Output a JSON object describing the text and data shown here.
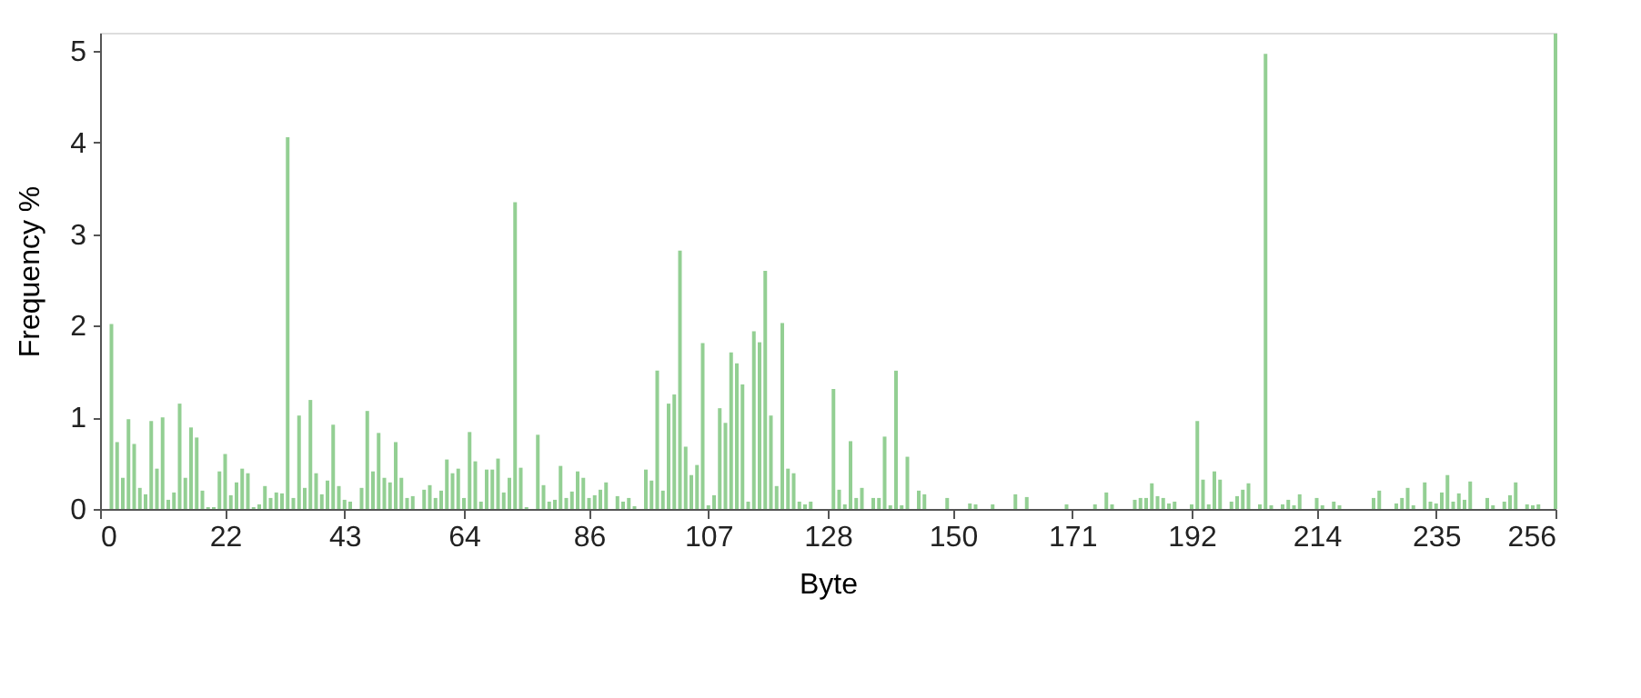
{
  "chart_data": {
    "type": "bar",
    "xlabel": "Byte",
    "ylabel": "Frequency %",
    "x": [
      1,
      2,
      3,
      4,
      5,
      6,
      7,
      8,
      9,
      10,
      11,
      12,
      13,
      14,
      15,
      16,
      17,
      18,
      19,
      20,
      21,
      22,
      23,
      24,
      25,
      26,
      27,
      28,
      29,
      30,
      31,
      32,
      33,
      34,
      35,
      36,
      37,
      38,
      39,
      40,
      41,
      42,
      43,
      44,
      45,
      46,
      47,
      48,
      49,
      50,
      51,
      52,
      53,
      54,
      55,
      56,
      57,
      58,
      59,
      60,
      61,
      62,
      63,
      64,
      65,
      66,
      67,
      68,
      69,
      70,
      71,
      72,
      73,
      74,
      75,
      76,
      77,
      78,
      79,
      80,
      81,
      82,
      83,
      84,
      85,
      86,
      87,
      88,
      89,
      90,
      91,
      92,
      93,
      94,
      95,
      96,
      97,
      98,
      99,
      100,
      101,
      102,
      103,
      104,
      105,
      106,
      107,
      108,
      109,
      110,
      111,
      112,
      113,
      114,
      115,
      116,
      117,
      118,
      119,
      120,
      121,
      122,
      123,
      124,
      125,
      126,
      127,
      128,
      129,
      130,
      131,
      132,
      133,
      134,
      135,
      136,
      137,
      138,
      139,
      140,
      141,
      142,
      143,
      144,
      145,
      146,
      147,
      148,
      149,
      150,
      151,
      152,
      153,
      154,
      155,
      156,
      157,
      158,
      159,
      160,
      161,
      162,
      163,
      164,
      165,
      166,
      167,
      168,
      169,
      170,
      171,
      172,
      173,
      174,
      175,
      176,
      177,
      178,
      179,
      180,
      181,
      182,
      183,
      184,
      185,
      186,
      187,
      188,
      189,
      190,
      191,
      192,
      193,
      194,
      195,
      196,
      197,
      198,
      199,
      200,
      201,
      202,
      203,
      204,
      205,
      206,
      207,
      208,
      209,
      210,
      211,
      212,
      213,
      214,
      215,
      216,
      217,
      218,
      219,
      220,
      221,
      222,
      223,
      224,
      225,
      226,
      227,
      228,
      229,
      230,
      231,
      232,
      233,
      234,
      235,
      236,
      237,
      238,
      239,
      240,
      241,
      242,
      243,
      244,
      245,
      246,
      247,
      248,
      249,
      250,
      251,
      252,
      253,
      254,
      255,
      256
    ],
    "values": [
      0,
      2.02,
      0.73,
      0.34,
      0.98,
      0.71,
      0.23,
      0.16,
      0.96,
      0.44,
      1.0,
      0.1,
      0.18,
      1.15,
      0.34,
      0.89,
      0.78,
      0.2,
      0.02,
      0.02,
      0.41,
      0.6,
      0.15,
      0.29,
      0.44,
      0.39,
      0.02,
      0.05,
      0.25,
      0.12,
      0.18,
      0.17,
      4.06,
      0.12,
      1.02,
      0.23,
      1.19,
      0.39,
      0.16,
      0.31,
      0.92,
      0.25,
      0.1,
      0.08,
      0,
      0.23,
      1.07,
      0.41,
      0.83,
      0.34,
      0.29,
      0.73,
      0.34,
      0.12,
      0.14,
      0,
      0.21,
      0.26,
      0.12,
      0.2,
      0.54,
      0.39,
      0.44,
      0.12,
      0.84,
      0.52,
      0.08,
      0.43,
      0.43,
      0.55,
      0.18,
      0.34,
      3.35,
      0.45,
      0.02,
      0,
      0.81,
      0.26,
      0.08,
      0.1,
      0.47,
      0.12,
      0.19,
      0.41,
      0.34,
      0.12,
      0.15,
      0.21,
      0.29,
      0,
      0.14,
      0.08,
      0.12,
      0.03,
      0,
      0.43,
      0.31,
      1.51,
      0.2,
      1.15,
      1.25,
      2.82,
      0.68,
      0.37,
      0.48,
      1.81,
      0.04,
      0.15,
      1.1,
      0.94,
      1.71,
      1.59,
      1.36,
      0.08,
      1.94,
      1.82,
      2.6,
      1.02,
      0.25,
      2.03,
      0.44,
      0.39,
      0.08,
      0.05,
      0.08,
      0,
      0,
      0,
      1.31,
      0.21,
      0.05,
      0.74,
      0.12,
      0.23,
      0,
      0.12,
      0.12,
      0.79,
      0.04,
      1.51,
      0.04,
      0.57,
      0,
      0.2,
      0.16,
      0,
      0,
      0,
      0.12,
      0,
      0,
      0,
      0.06,
      0.05,
      0,
      0,
      0.05,
      0,
      0,
      0,
      0.16,
      0,
      0.13,
      0,
      0,
      0,
      0,
      0,
      0,
      0.05,
      0,
      0,
      0,
      0,
      0.05,
      0,
      0.18,
      0.05,
      0,
      0,
      0,
      0.1,
      0.12,
      0.12,
      0.28,
      0.14,
      0.12,
      0.06,
      0.08,
      0,
      0,
      0.05,
      0.96,
      0.32,
      0.05,
      0.41,
      0.32,
      0,
      0.08,
      0.14,
      0.21,
      0.28,
      0,
      0.05,
      4.97,
      0.04,
      0,
      0.05,
      0.1,
      0.04,
      0.16,
      0,
      0,
      0.12,
      0.04,
      0,
      0.08,
      0.04,
      0,
      0,
      0,
      0,
      0,
      0.12,
      0.2,
      0,
      0,
      0.06,
      0.12,
      0.23,
      0.04,
      0,
      0.29,
      0.08,
      0.06,
      0.18,
      0.37,
      0.08,
      0.17,
      0.1,
      0.3,
      0,
      0,
      0.12,
      0.04,
      0,
      0.08,
      0.15,
      0.29,
      0,
      0.05,
      0.04,
      0.05,
      0,
      0,
      5.19
    ],
    "color": "#93cf93",
    "xlim": [
      0,
      256
    ],
    "xticks": [
      0,
      22,
      43,
      64,
      86,
      107,
      128,
      150,
      171,
      192,
      214,
      235,
      256
    ],
    "ylim": [
      0,
      5.2
    ],
    "yticks": [
      0,
      1,
      2,
      3,
      4,
      5
    ],
    "grid": false
  }
}
